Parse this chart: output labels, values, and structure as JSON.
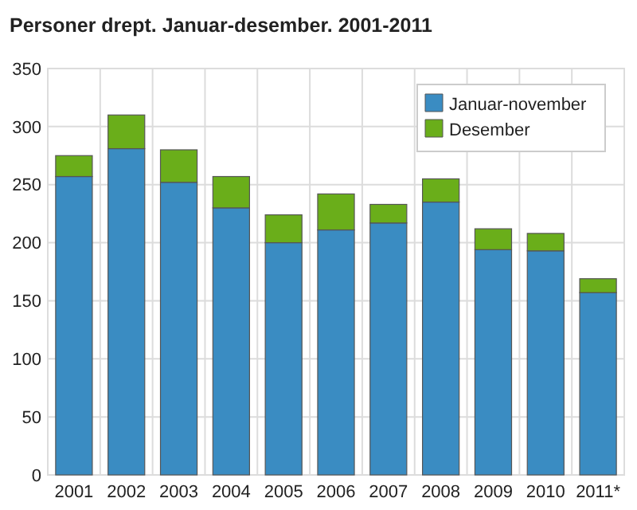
{
  "chart_data": {
    "type": "bar",
    "title": "Personer drept. Januar-desember. 2001-2011",
    "categories": [
      "2001",
      "2002",
      "2003",
      "2004",
      "2005",
      "2006",
      "2007",
      "2008",
      "2009",
      "2010",
      "2011*"
    ],
    "series": [
      {
        "name": "Januar-november",
        "color": "#3a8cc2",
        "values": [
          257,
          281,
          252,
          230,
          200,
          211,
          217,
          235,
          194,
          193,
          157
        ]
      },
      {
        "name": "Desember",
        "color": "#6aae1a",
        "values": [
          18,
          29,
          28,
          27,
          24,
          31,
          16,
          20,
          18,
          15,
          12
        ]
      }
    ],
    "stacked": true,
    "ylim": [
      0,
      350
    ],
    "yticks": [
      0,
      50,
      100,
      150,
      200,
      250,
      300,
      350
    ],
    "grid": true,
    "legend": "top right"
  }
}
